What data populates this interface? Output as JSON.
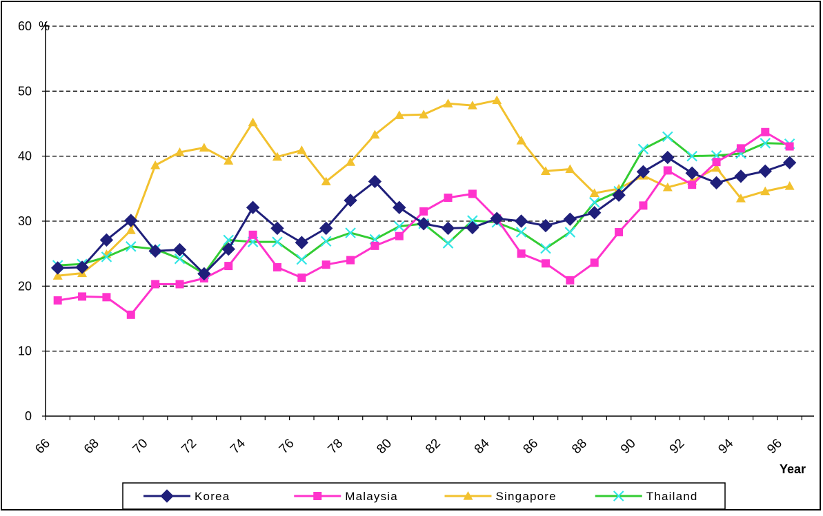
{
  "chart_data": {
    "type": "line",
    "yunit": "%",
    "xunit": "Year",
    "ylim": [
      0,
      60
    ],
    "yticks": [
      0,
      10,
      20,
      30,
      40,
      50,
      60
    ],
    "xlim": [
      66,
      97.5
    ],
    "xticks": [
      "66",
      "68",
      "70",
      "72",
      "74",
      "76",
      "78",
      "80",
      "82",
      "84",
      "86",
      "88",
      "90",
      "92",
      "94",
      "96"
    ],
    "grid": "horizontal dashed",
    "legend_position": "bottom",
    "x": [
      66.5,
      67.5,
      68.5,
      69.5,
      70.5,
      71.5,
      72.5,
      73.5,
      74.5,
      75.5,
      76.5,
      77.5,
      78.5,
      79.5,
      80.5,
      81.5,
      82.5,
      83.5,
      84.5,
      85.5,
      86.5,
      87.5,
      88.5,
      89.5,
      90.5,
      91.5,
      92.5,
      93.5,
      94.5,
      95.5,
      96.5
    ],
    "series": [
      {
        "name": "Korea",
        "color": "#1f1f7a",
        "marker": "diamond",
        "values": [
          22.8,
          22.9,
          27.1,
          30.1,
          25.4,
          25.6,
          21.9,
          25.7,
          32.1,
          28.9,
          26.7,
          28.9,
          33.2,
          36.1,
          32.1,
          29.6,
          28.9,
          29.0,
          30.4,
          30.0,
          29.3,
          30.3,
          31.3,
          34.0,
          37.6,
          39.8,
          37.4,
          35.9,
          36.9,
          37.7,
          39.0
        ]
      },
      {
        "name": "Malaysia",
        "color": "#ff33cc",
        "marker": "square",
        "values": [
          17.8,
          18.4,
          18.3,
          15.6,
          20.3,
          20.3,
          21.2,
          23.1,
          27.9,
          22.9,
          21.3,
          23.3,
          24.0,
          26.2,
          27.7,
          31.5,
          33.6,
          34.2,
          30.4,
          25.0,
          23.5,
          20.9,
          23.6,
          28.3,
          32.4,
          37.8,
          35.6,
          39.1,
          41.2,
          43.7,
          41.5
        ]
      },
      {
        "name": "Singapore",
        "color": "#f2c12e",
        "marker": "triangle",
        "values": [
          21.6,
          22.0,
          24.9,
          28.6,
          38.6,
          40.6,
          41.3,
          39.3,
          45.2,
          39.9,
          40.9,
          36.1,
          39.1,
          43.3,
          46.3,
          46.4,
          48.1,
          47.8,
          48.6,
          42.4,
          37.7,
          38.0,
          34.3,
          35.0,
          37.0,
          35.2,
          36.2,
          38.2,
          33.5,
          34.6,
          35.4
        ]
      },
      {
        "name": "Thailand",
        "color": "#33cc33",
        "marker": "x",
        "values": [
          23.2,
          23.4,
          24.5,
          26.1,
          25.7,
          24.2,
          21.9,
          27.1,
          26.8,
          26.8,
          24.1,
          26.9,
          28.2,
          27.2,
          29.2,
          29.6,
          26.6,
          30.1,
          29.8,
          28.3,
          25.8,
          28.3,
          32.9,
          34.6,
          41.1,
          43.0,
          40.0,
          40.1,
          40.4,
          42.0,
          41.9
        ]
      }
    ]
  }
}
